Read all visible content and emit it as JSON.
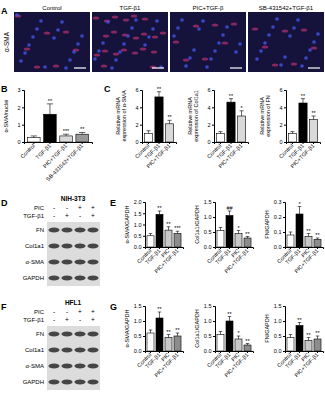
{
  "chart_data": [
    {
      "type": "image",
      "title": "A",
      "ylabel": "α-SMA",
      "categories": [
        "Control",
        "TGF-β1",
        "PIC+TGF-β",
        "SB-431542+TGF-β1"
      ]
    },
    {
      "type": "bar",
      "title": "B",
      "ylabel": [
        "α-SMA/nuclei"
      ],
      "categories": [
        "Control",
        "TGF-β1",
        "PIC+TGF-β1",
        "SB-431542+TGF-β1"
      ],
      "values": [
        0.25,
        1.6,
        0.35,
        0.45
      ],
      "errors": [
        0.1,
        0.6,
        0.1,
        0.1
      ],
      "colors": [
        "#ffffff",
        "#000000",
        "#d9d9d9",
        "#999999"
      ],
      "annotations": [
        null,
        "**",
        "***",
        "**"
      ],
      "ylim": [
        0,
        3
      ],
      "yticks": [
        0,
        1,
        2,
        3
      ]
    },
    {
      "type": "bar",
      "title": "C",
      "ylabel": [
        "Relative mRNA",
        "expression of α-SMA"
      ],
      "categories": [
        "Control",
        "TGF-β1",
        "PIC+TGF-β1"
      ],
      "values": [
        1,
        5.2,
        2.1
      ],
      "errors": [
        0.3,
        0.6,
        0.4
      ],
      "colors": [
        "#ffffff",
        "#000000",
        "#d9d9d9"
      ],
      "annotations": [
        null,
        "**",
        "**"
      ],
      "ylim": [
        0,
        6
      ],
      "yticks": [
        0,
        2,
        4,
        6
      ]
    },
    {
      "type": "bar",
      "ylabel": [
        "Relative mRNA",
        "expression of Col1a1"
      ],
      "categories": [
        "Control",
        "TGF-β1",
        "PIC+TGF-β1"
      ],
      "values": [
        1,
        4.6,
        3.0
      ],
      "errors": [
        0.2,
        0.4,
        0.6
      ],
      "colors": [
        "#ffffff",
        "#000000",
        "#d9d9d9"
      ],
      "annotations": [
        null,
        "**",
        "*"
      ],
      "ylim": [
        0,
        6
      ],
      "yticks": [
        0,
        2,
        4,
        6
      ]
    },
    {
      "type": "bar",
      "ylabel": [
        "Relative mRNA",
        "expression of FN"
      ],
      "categories": [
        "Control",
        "TGF-β1",
        "PIC+TGF-β1"
      ],
      "values": [
        1,
        4.5,
        2.6
      ],
      "errors": [
        0.2,
        0.5,
        0.4
      ],
      "colors": [
        "#ffffff",
        "#000000",
        "#d9d9d9"
      ],
      "annotations": [
        null,
        "**",
        "**"
      ],
      "ylim": [
        0,
        6
      ],
      "yticks": [
        0,
        2,
        4,
        6
      ]
    },
    {
      "type": "blot",
      "title": "D",
      "subtitle": "NIH-3T3",
      "conditions": [
        {
          "name": "PIC",
          "signs": [
            "-",
            "-",
            "+",
            "+"
          ]
        },
        {
          "name": "TGF-β1",
          "signs": [
            "-",
            "+",
            "-",
            "+"
          ]
        }
      ],
      "rows": [
        "FN",
        "Col1a1",
        "α-SMA",
        "GAPDH"
      ]
    },
    {
      "type": "bar",
      "title": "E",
      "ylabel": [
        "α-SMA/GAPDH"
      ],
      "categories": [
        "Control",
        "TGF-β1",
        "PIC",
        "PIC+TGF-β1"
      ],
      "values": [
        0.5,
        1.45,
        0.75,
        0.6
      ],
      "errors": [
        0.1,
        0.15,
        0.15,
        0.1
      ],
      "colors": [
        "#ffffff",
        "#000000",
        "#c8c8c8",
        "#8c8c8c"
      ],
      "annotations": [
        null,
        "**",
        "**",
        "***"
      ],
      "ylim": [
        0,
        2
      ],
      "yticks": [
        {
          "value": 0,
          "label": "0.0"
        },
        0.5,
        {
          "value": 1,
          "label": "1.0"
        },
        1.5,
        {
          "value": 2,
          "label": "2.0"
        }
      ]
    },
    {
      "type": "bar",
      "ylabel": [
        "Col1a1/GAPDH"
      ],
      "categories": [
        "Control",
        "TGF-β1",
        "PIC",
        "PIC+TGF-β1"
      ],
      "values": [
        0.55,
        1.05,
        0.45,
        0.3
      ],
      "errors": [
        0.1,
        0.15,
        0.1,
        0.05
      ],
      "colors": [
        "#ffffff",
        "#000000",
        "#c8c8c8",
        "#8c8c8c"
      ],
      "annotations": [
        null,
        "##",
        "*",
        "**"
      ],
      "ylim": [
        0,
        1.5
      ],
      "yticks": [
        {
          "value": 0,
          "label": "0.0"
        },
        0.5,
        {
          "value": 1,
          "label": "1.0"
        },
        1.5
      ]
    },
    {
      "type": "bar",
      "ylabel": [
        "FN/GAPDH"
      ],
      "categories": [
        "Control",
        "TGF-β1",
        "PIC",
        "PIC+TGF-β1"
      ],
      "values": [
        0.08,
        0.22,
        0.07,
        0.05
      ],
      "errors": [
        0.02,
        0.05,
        0.02,
        0.01
      ],
      "colors": [
        "#ffffff",
        "#000000",
        "#c8c8c8",
        "#8c8c8c"
      ],
      "annotations": [
        null,
        "*",
        "**",
        "**"
      ],
      "ylim": [
        0,
        0.3
      ],
      "yticks": [
        {
          "value": 0,
          "label": "0.0"
        },
        0.1,
        0.2,
        0.3
      ]
    },
    {
      "type": "blot",
      "title": "F",
      "subtitle": "HFL1",
      "conditions": [
        {
          "name": "PIC",
          "signs": [
            "-",
            "-",
            "+",
            "+"
          ]
        },
        {
          "name": "TGF-β1",
          "signs": [
            "-",
            "+",
            "-",
            "+"
          ]
        }
      ],
      "rows": [
        "FN",
        "Col1a1",
        "α-SMA",
        "GAPDH"
      ]
    },
    {
      "type": "bar",
      "title": "G",
      "ylabel": [
        "α-SMA/GAPDH"
      ],
      "categories": [
        "Control",
        "TGF-β1",
        "PIC",
        "PIC+TGF-β1"
      ],
      "values": [
        0.6,
        1.1,
        0.45,
        0.5
      ],
      "errors": [
        0.1,
        0.2,
        0.1,
        0.1
      ],
      "colors": [
        "#ffffff",
        "#000000",
        "#c8c8c8",
        "#8c8c8c"
      ],
      "annotations": [
        null,
        "**",
        "**",
        "**"
      ],
      "ylim": [
        0,
        1.5
      ],
      "yticks": [
        {
          "value": 0,
          "label": "0.0"
        },
        0.5,
        {
          "value": 1,
          "label": "1.0"
        },
        1.5
      ]
    },
    {
      "type": "bar",
      "ylabel": [
        "Col1a1/GAPDH"
      ],
      "categories": [
        "Control",
        "TGF-β1",
        "PIC",
        "PIC+TGF-β1"
      ],
      "values": [
        0.55,
        1.0,
        0.4,
        0.2
      ],
      "errors": [
        0.1,
        0.15,
        0.1,
        0.05
      ],
      "colors": [
        "#ffffff",
        "#000000",
        "#c8c8c8",
        "#8c8c8c"
      ],
      "annotations": [
        null,
        "**",
        "*",
        "**"
      ],
      "ylim": [
        0,
        1.5
      ],
      "yticks": [
        {
          "value": 0,
          "label": "0.0"
        },
        0.5,
        {
          "value": 1,
          "label": "1.0"
        },
        1.5
      ]
    },
    {
      "type": "bar",
      "ylabel": [
        "FN/GAPDH"
      ],
      "categories": [
        "Control",
        "TGF-β1",
        "PIC",
        "PIC+TGF-β1"
      ],
      "values": [
        0.45,
        0.85,
        0.35,
        0.4
      ],
      "errors": [
        0.1,
        0.1,
        0.1,
        0.1
      ],
      "colors": [
        "#ffffff",
        "#000000",
        "#c8c8c8",
        "#8c8c8c"
      ],
      "annotations": [
        null,
        "**",
        "**",
        "**"
      ],
      "ylim": [
        0,
        1.5
      ],
      "yticks": [
        {
          "value": 0,
          "label": "0.0"
        },
        0.5,
        {
          "value": 1,
          "label": "1.0"
        },
        1.5
      ]
    }
  ]
}
